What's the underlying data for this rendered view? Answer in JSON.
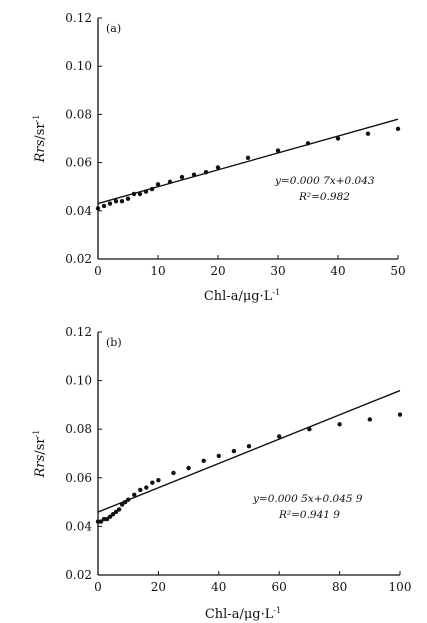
{
  "chart_data": [
    {
      "panel_label": "(a)",
      "type": "scatter",
      "xlabel": "Chl-a/μg·L⁻¹",
      "ylabel": "Rrs/sr⁻¹",
      "xlim": [
        0,
        50
      ],
      "ylim": [
        0.02,
        0.12
      ],
      "xticks": [
        "0",
        "10",
        "20",
        "30",
        "40",
        "50"
      ],
      "yticks": [
        "0.02",
        "0.04",
        "0.06",
        "0.08",
        "0.10",
        "0.12"
      ],
      "grid": false,
      "series": [
        {
          "x": [
            0,
            1,
            2,
            3,
            4,
            5,
            6,
            7,
            8,
            9,
            10,
            12,
            14,
            16,
            18,
            20,
            25,
            30,
            35,
            40,
            45,
            50
          ],
          "y": [
            0.041,
            0.042,
            0.043,
            0.044,
            0.044,
            0.045,
            0.047,
            0.047,
            0.048,
            0.049,
            0.051,
            0.052,
            0.054,
            0.055,
            0.056,
            0.058,
            0.062,
            0.065,
            0.068,
            0.07,
            0.072,
            0.074
          ]
        }
      ],
      "fit": {
        "slope": 0.0007,
        "intercept": 0.043
      },
      "annotation": {
        "equation": "y=0.000 7x+0.043",
        "r2": "R²=0.982"
      }
    },
    {
      "panel_label": "(b)",
      "type": "scatter",
      "xlabel": "Chl-a/μg·L⁻¹",
      "ylabel": "Rrs/sr⁻¹",
      "xlim": [
        0,
        100
      ],
      "ylim": [
        0.02,
        0.12
      ],
      "xticks": [
        "0",
        "20",
        "40",
        "60",
        "80",
        "100"
      ],
      "yticks": [
        "0.02",
        "0.04",
        "0.06",
        "0.08",
        "0.10",
        "0.12"
      ],
      "grid": false,
      "series": [
        {
          "x": [
            0,
            1,
            2,
            3,
            4,
            5,
            6,
            7,
            8,
            9,
            10,
            12,
            14,
            16,
            18,
            20,
            25,
            30,
            35,
            40,
            45,
            50,
            60,
            70,
            80,
            90,
            100
          ],
          "y": [
            0.042,
            0.042,
            0.043,
            0.043,
            0.044,
            0.045,
            0.046,
            0.047,
            0.049,
            0.05,
            0.051,
            0.053,
            0.055,
            0.056,
            0.058,
            0.059,
            0.062,
            0.064,
            0.067,
            0.069,
            0.071,
            0.073,
            0.077,
            0.08,
            0.082,
            0.084,
            0.086
          ]
        }
      ],
      "fit": {
        "slope": 0.0005,
        "intercept": 0.0459
      },
      "annotation": {
        "equation": "y=0.000 5x+0.045 9",
        "r2": "R²=0.941 9"
      }
    }
  ]
}
